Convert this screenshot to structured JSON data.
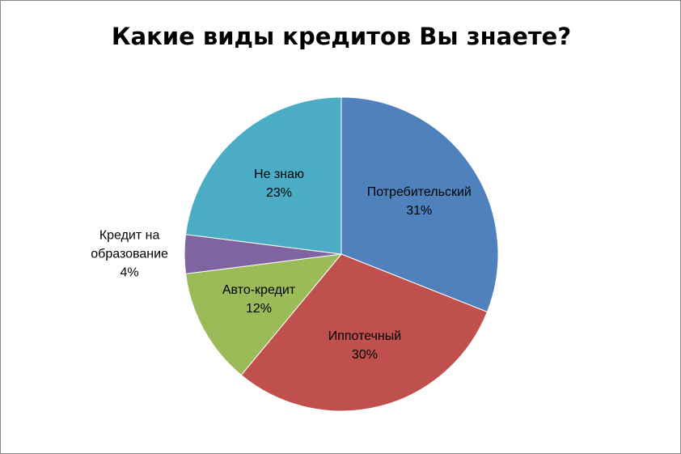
{
  "chart_data": {
    "type": "pie",
    "title": "Какие виды кредитов Вы знаете?",
    "categories": [
      "Потребительский",
      "Иппотечный",
      "Авто-кредит",
      "Кредит на образование",
      "Не знаю"
    ],
    "values": [
      31,
      30,
      12,
      4,
      23
    ],
    "value_labels": [
      "31%",
      "30%",
      "12%",
      "4%",
      "23%"
    ],
    "colors": [
      "#4f81bd",
      "#c0504d",
      "#9bbb59",
      "#8064a2",
      "#4bacc6"
    ]
  }
}
